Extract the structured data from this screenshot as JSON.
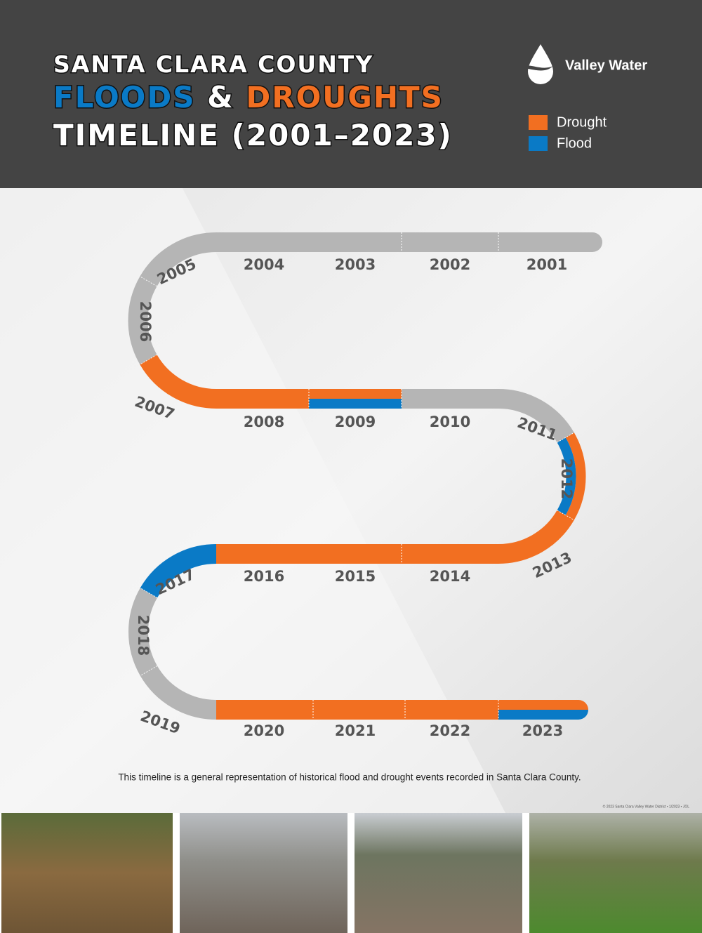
{
  "header": {
    "title_line1": "SANTA CLARA COUNTY",
    "title_floods": "FLOODS",
    "title_amp": "&",
    "title_droughts": "DROUGHTS",
    "title_line3": "TIMELINE (2001–2023)",
    "logo": "Valley Water"
  },
  "legend": [
    {
      "label": "Drought",
      "color": "#f26f21"
    },
    {
      "label": "Flood",
      "color": "#0a7ac6"
    }
  ],
  "timeline": {
    "neutral_color": "#b5b5b5",
    "events": [
      {
        "year": "2001",
        "drought": false,
        "flood": false
      },
      {
        "year": "2002",
        "drought": false,
        "flood": false
      },
      {
        "year": "2003",
        "drought": false,
        "flood": false
      },
      {
        "year": "2004",
        "drought": false,
        "flood": false
      },
      {
        "year": "2005",
        "drought": false,
        "flood": false
      },
      {
        "year": "2006",
        "drought": false,
        "flood": false
      },
      {
        "year": "2007",
        "drought": true,
        "flood": false
      },
      {
        "year": "2008",
        "drought": true,
        "flood": false
      },
      {
        "year": "2009",
        "drought": true,
        "flood": true
      },
      {
        "year": "2010",
        "drought": false,
        "flood": false
      },
      {
        "year": "2011",
        "drought": false,
        "flood": false
      },
      {
        "year": "2012",
        "drought": true,
        "flood": true
      },
      {
        "year": "2013",
        "drought": true,
        "flood": false
      },
      {
        "year": "2014",
        "drought": true,
        "flood": false
      },
      {
        "year": "2015",
        "drought": true,
        "flood": false
      },
      {
        "year": "2016",
        "drought": true,
        "flood": false
      },
      {
        "year": "2017",
        "drought": false,
        "flood": true
      },
      {
        "year": "2018",
        "drought": false,
        "flood": false
      },
      {
        "year": "2019",
        "drought": false,
        "flood": false
      },
      {
        "year": "2020",
        "drought": true,
        "flood": false
      },
      {
        "year": "2021",
        "drought": true,
        "flood": false
      },
      {
        "year": "2022",
        "drought": true,
        "flood": false
      },
      {
        "year": "2023",
        "drought": true,
        "flood": true
      }
    ]
  },
  "footnote": "This timeline is a general representation of historical flood and drought events recorded in Santa Clara County.",
  "copyright": "© 2023 Santa Clara Valley Water District • 1/2023 • JOL"
}
